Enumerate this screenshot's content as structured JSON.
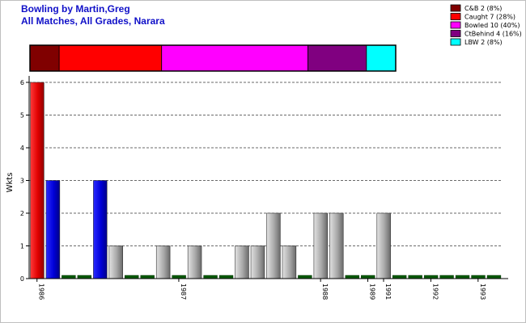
{
  "title_line1": "Bowling by Martin,Greg",
  "title_line2": "All Matches, All Grades, Narara",
  "chart_data": {
    "type": "bar",
    "title": "Bowling by Martin,Greg",
    "subtitle": "All Matches, All Grades, Narara",
    "xlabel": "",
    "ylabel": "Wkts",
    "ylim": [
      0,
      6
    ],
    "yticks": [
      0,
      1,
      2,
      3,
      4,
      5,
      6
    ],
    "grid": true,
    "values": [
      6,
      3,
      0,
      0,
      3,
      1,
      0,
      0,
      1,
      0,
      1,
      0,
      0,
      1,
      1,
      2,
      1,
      0,
      2,
      2,
      0,
      0,
      2,
      0,
      0,
      0,
      0,
      0,
      0,
      0
    ],
    "bar_kind": [
      "red",
      "blue",
      "zero",
      "zero",
      "blue",
      "gray",
      "zero",
      "zero",
      "gray",
      "zero",
      "gray",
      "zero",
      "zero",
      "gray",
      "gray",
      "gray",
      "gray",
      "zero",
      "gray",
      "gray",
      "zero",
      "zero",
      "gray",
      "zero",
      "zero",
      "zero",
      "zero",
      "zero",
      "zero",
      "zero"
    ],
    "x_tick_labels": [
      {
        "index": 0,
        "label": "1986"
      },
      {
        "index": 9,
        "label": "1987"
      },
      {
        "index": 18,
        "label": "1988"
      },
      {
        "index": 21,
        "label": "1989"
      },
      {
        "index": 22,
        "label": "1991"
      },
      {
        "index": 25,
        "label": "1992"
      },
      {
        "index": 28,
        "label": "1993"
      }
    ],
    "dismissals": [
      {
        "label": "C&B 2 (8%)",
        "value": 2,
        "color": "#800000"
      },
      {
        "label": "Caught 7 (28%)",
        "value": 7,
        "color": "#ff0000"
      },
      {
        "label": "Bowled 10 (40%)",
        "value": 10,
        "color": "#ff00ff"
      },
      {
        "label": "CtBehind 4 (16%)",
        "value": 4,
        "color": "#800080"
      },
      {
        "label": "LBW 2 (8%)",
        "value": 2,
        "color": "#00ffff"
      }
    ],
    "legend_position": "top-right",
    "colors": {
      "red": "#ff0000",
      "blue": "#0000dd",
      "gray": "#a0a0a0",
      "zero": "#0a5a0a"
    }
  }
}
